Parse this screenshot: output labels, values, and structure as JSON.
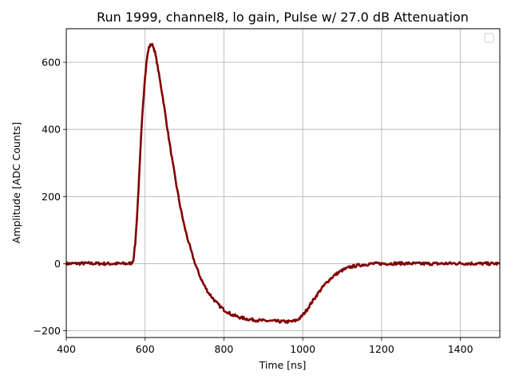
{
  "chart_data": {
    "type": "line",
    "title": "Run 1999, channel8, lo gain, Pulse w/ 27.0 dB Attenuation",
    "xlabel": "Time [ns]",
    "ylabel": "Amplitude [ADC Counts]",
    "xlim": [
      400,
      1500
    ],
    "ylim": [
      -220,
      700
    ],
    "xticks": [
      400,
      600,
      800,
      1000,
      1200,
      1400
    ],
    "yticks": [
      -200,
      0,
      200,
      400,
      600
    ],
    "xtick_labels": [
      "400",
      "600",
      "800",
      "1000",
      "1200",
      "1400"
    ],
    "ytick_labels": [
      "−200",
      "0",
      "200",
      "400",
      "600"
    ],
    "grid": true,
    "legend": "top-right (empty)",
    "line_color": "#800000",
    "series": [
      {
        "x": [
          400,
          450,
          500,
          550,
          565,
          570,
          575,
          580,
          585,
          590,
          595,
          600,
          605,
          610,
          615,
          620,
          625,
          630,
          635,
          640,
          645,
          650,
          655,
          660,
          670,
          680,
          690,
          700,
          710,
          720,
          730,
          740,
          750,
          760,
          770,
          780,
          790,
          800,
          820,
          840,
          860,
          880,
          900,
          920,
          940,
          960,
          975,
          985,
          995,
          1000,
          1010,
          1020,
          1030,
          1040,
          1050,
          1060,
          1070,
          1080,
          1090,
          1100,
          1120,
          1140,
          1160,
          1180,
          1200,
          1250,
          1300,
          1350,
          1400,
          1450,
          1500
        ],
        "values": [
          0,
          1,
          0,
          0,
          1,
          10,
          60,
          150,
          260,
          380,
          480,
          560,
          615,
          645,
          653,
          650,
          630,
          600,
          565,
          530,
          495,
          455,
          415,
          375,
          300,
          230,
          165,
          110,
          65,
          25,
          -10,
          -40,
          -65,
          -85,
          -100,
          -115,
          -127,
          -137,
          -152,
          -160,
          -165,
          -168,
          -170,
          -171,
          -172,
          -173,
          -172,
          -168,
          -160,
          -153,
          -138,
          -120,
          -103,
          -86,
          -71,
          -57,
          -45,
          -35,
          -27,
          -20,
          -10,
          -5,
          -2,
          0,
          0,
          1,
          0,
          0,
          1,
          0,
          0
        ]
      }
    ]
  }
}
